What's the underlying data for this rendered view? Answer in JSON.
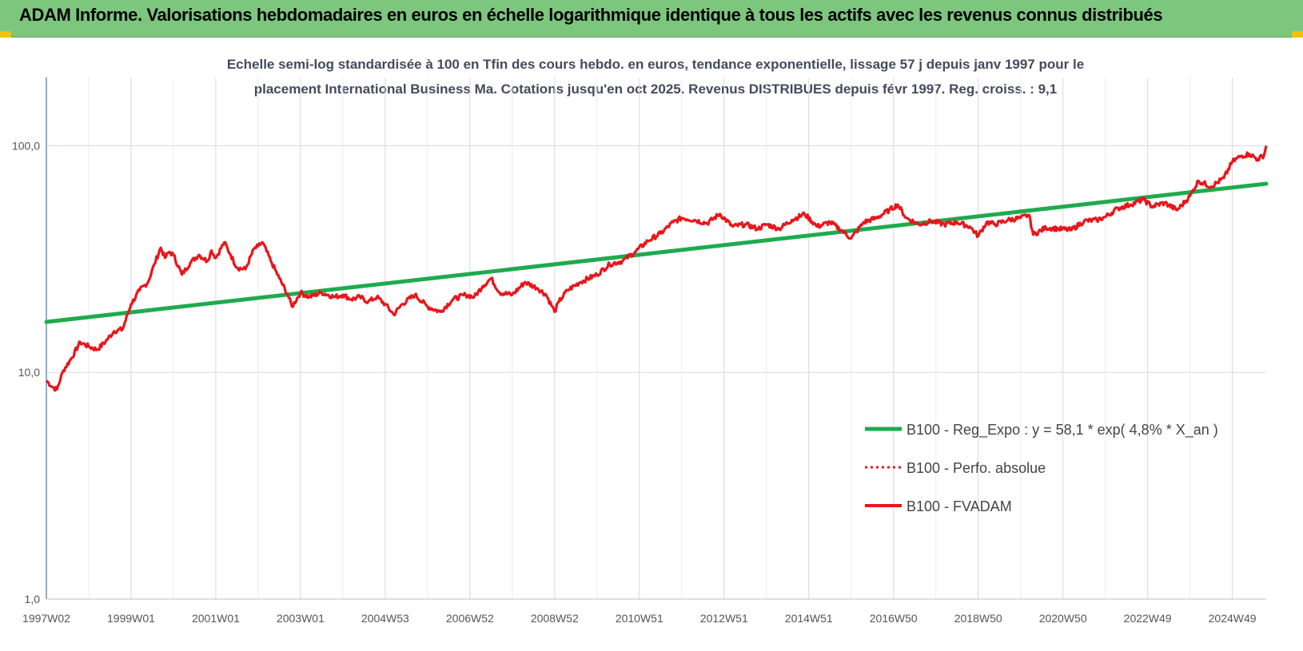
{
  "header": {
    "title": "ADAM Informe. Valorisations hebdomadaires en euros en échelle logarithmique identique à tous les actifs avec les revenus connus distribués"
  },
  "colors": {
    "header_bg": "#7dc67e",
    "corner": "#f2c200",
    "trend": "#1faa4e",
    "fvadam": "#e8161b",
    "perfo": "#e8161b",
    "grid": "#d9d9d9",
    "axis": "#4472c4"
  },
  "chart_data": {
    "type": "line",
    "subtitle_line1": "Echelle semi-log standardisée à 100 en Tfin des cours hebdo. en euros, tendance exponentielle, lissage 57 j depuis janv 1997 pour le",
    "subtitle_line2": "placement International Business Ma. Cotations jusqu'en oct 2025. Revenus DISTRIBUES depuis févr 1997. Reg. croiss. : 9,1",
    "y_scale": "log",
    "ylim": [
      1,
      200
    ],
    "y_ticks": [
      {
        "value": 1,
        "label": "1,0"
      },
      {
        "value": 10,
        "label": "10,0"
      },
      {
        "value": 100,
        "label": "100,0"
      }
    ],
    "xlim": [
      1997.0,
      2025.8
    ],
    "x_ticks": [
      {
        "x": 1997.0,
        "label": "1997W02"
      },
      {
        "x": 1999.0,
        "label": "1999W01"
      },
      {
        "x": 2001.0,
        "label": "2001W01"
      },
      {
        "x": 2003.0,
        "label": "2003W01"
      },
      {
        "x": 2005.0,
        "label": "2004W53"
      },
      {
        "x": 2007.0,
        "label": "2006W52"
      },
      {
        "x": 2009.0,
        "label": "2008W52"
      },
      {
        "x": 2011.0,
        "label": "2010W51"
      },
      {
        "x": 2013.0,
        "label": "2012W51"
      },
      {
        "x": 2015.0,
        "label": "2014W51"
      },
      {
        "x": 2017.0,
        "label": "2016W50"
      },
      {
        "x": 2019.0,
        "label": "2018W50"
      },
      {
        "x": 2021.0,
        "label": "2020W50"
      },
      {
        "x": 2023.0,
        "label": "2022W49"
      },
      {
        "x": 2025.0,
        "label": "2024W49"
      }
    ],
    "grid": true,
    "legend_position": "right",
    "series": [
      {
        "name": "B100 - Reg_Expo : y = 58,1 * exp( 4,8% *  X_an )",
        "style": "solid-thick",
        "x": [
          1997.0,
          2025.8
        ],
        "y": [
          16.7,
          68.0
        ]
      },
      {
        "name": "B100 - Perfo. absolue",
        "style": "dotted",
        "x": [],
        "y": []
      },
      {
        "name": "B100 - FVADAM",
        "style": "solid",
        "x": [
          1997.0,
          1997.15,
          1997.25,
          1997.4,
          1997.6,
          1997.8,
          1998.0,
          1998.2,
          1998.4,
          1998.6,
          1998.8,
          1999.0,
          1999.2,
          1999.4,
          1999.55,
          1999.7,
          1999.8,
          1999.9,
          2000.0,
          2000.2,
          2000.4,
          2000.6,
          2000.8,
          2000.9,
          2001.0,
          2001.2,
          2001.35,
          2001.5,
          2001.7,
          2001.9,
          2002.0,
          2002.1,
          2002.3,
          2002.5,
          2002.7,
          2002.8,
          2003.0,
          2003.2,
          2003.5,
          2003.8,
          2004.0,
          2004.2,
          2004.4,
          2004.6,
          2004.8,
          2005.0,
          2005.2,
          2005.4,
          2005.7,
          2006.0,
          2006.3,
          2006.6,
          2006.9,
          2007.1,
          2007.3,
          2007.5,
          2007.7,
          2008.0,
          2008.3,
          2008.6,
          2008.8,
          2009.0,
          2009.1,
          2009.3,
          2009.6,
          2010.0,
          2010.3,
          2010.6,
          2010.9,
          2011.2,
          2011.5,
          2011.8,
          2012.0,
          2012.3,
          2012.6,
          2012.9,
          2013.2,
          2013.5,
          2013.8,
          2014.0,
          2014.3,
          2014.6,
          2014.9,
          2015.2,
          2015.5,
          2015.8,
          2016.0,
          2016.3,
          2016.6,
          2016.9,
          2017.1,
          2017.3,
          2017.6,
          2017.9,
          2018.2,
          2018.5,
          2018.8,
          2019.0,
          2019.2,
          2019.4,
          2019.7,
          2020.0,
          2020.2,
          2020.3,
          2020.6,
          2020.9,
          2021.2,
          2021.5,
          2021.8,
          2022.0,
          2022.3,
          2022.6,
          2022.9,
          2023.1,
          2023.4,
          2023.7,
          2024.0,
          2024.2,
          2024.5,
          2024.8,
          2025.0,
          2025.2,
          2025.4,
          2025.6,
          2025.75,
          2025.8
        ],
        "y": [
          9.2,
          8.6,
          8.4,
          10.2,
          11.6,
          13.6,
          13.0,
          12.6,
          13.7,
          15.2,
          15.5,
          20.0,
          23.0,
          25.0,
          30.0,
          35.5,
          32.0,
          34.0,
          33.0,
          27.0,
          30.5,
          33.0,
          31.0,
          34.5,
          32.0,
          37.5,
          33.0,
          29.0,
          28.5,
          35.0,
          36.0,
          37.5,
          31.0,
          26.0,
          22.0,
          19.5,
          22.5,
          21.5,
          22.5,
          21.5,
          22.0,
          21.0,
          21.5,
          20.5,
          21.5,
          20.0,
          18.0,
          20.0,
          22.0,
          19.5,
          18.5,
          21.0,
          22.0,
          21.5,
          24.0,
          26.0,
          22.5,
          22.0,
          25.0,
          23.5,
          22.0,
          18.5,
          20.5,
          23.0,
          25.0,
          27.0,
          30.0,
          31.0,
          34.0,
          38.0,
          41.0,
          46.0,
          48.0,
          47.0,
          45.5,
          50.0,
          44.0,
          45.0,
          43.0,
          45.0,
          43.0,
          47.0,
          50.0,
          44.0,
          46.0,
          42.0,
          39.0,
          46.0,
          48.0,
          52.0,
          55.0,
          48.0,
          45.0,
          46.5,
          45.0,
          46.0,
          44.0,
          40.0,
          46.0,
          45.0,
          47.0,
          48.0,
          49.5,
          40.5,
          43.5,
          43.0,
          42.5,
          46.5,
          47.0,
          48.5,
          53.0,
          55.0,
          58.0,
          54.0,
          56.0,
          52.0,
          60.0,
          70.0,
          66.0,
          72.0,
          85.0,
          90.0,
          92.0,
          87.0,
          91.0,
          100.0
        ]
      }
    ]
  }
}
